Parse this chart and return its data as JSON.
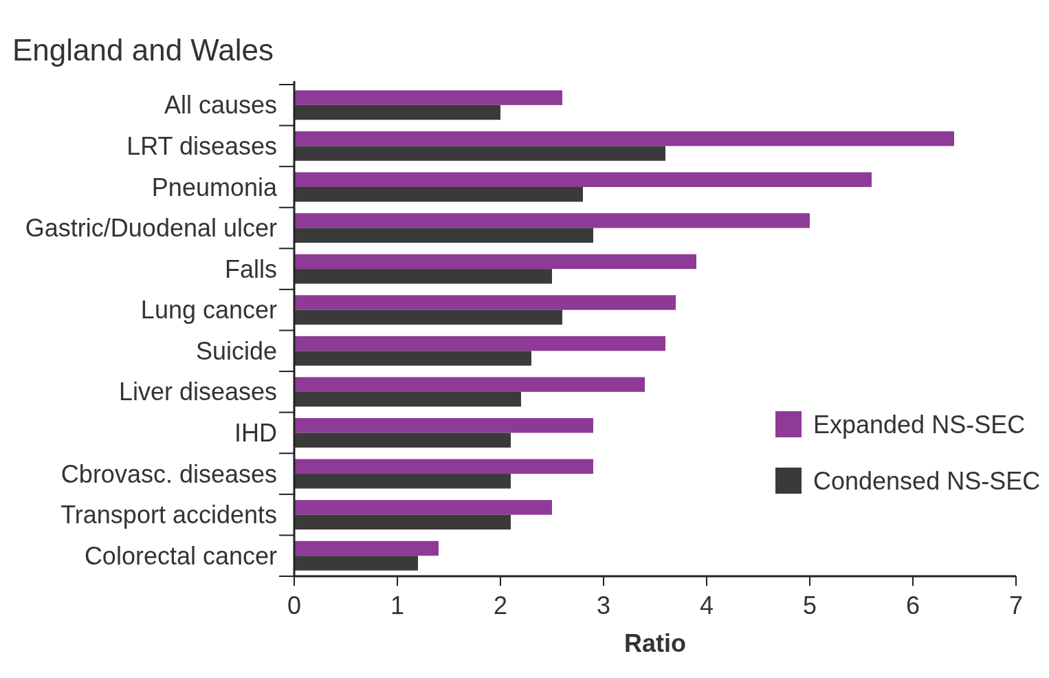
{
  "chart_data": {
    "type": "bar",
    "orientation": "horizontal",
    "title": "England and Wales",
    "xlabel": "Ratio",
    "categories": [
      "All causes",
      "LRT diseases",
      "Pneumonia",
      "Gastric/Duodenal ulcer",
      "Falls",
      "Lung cancer",
      "Suicide",
      "Liver diseases",
      "IHD",
      "Cbrovasc. diseases",
      "Transport accidents",
      "Colorectal cancer"
    ],
    "series": [
      {
        "name": "Expanded NS-SEC",
        "color": "#8e3a96",
        "values": [
          2.6,
          6.4,
          5.6,
          5.0,
          3.9,
          3.7,
          3.6,
          3.4,
          2.9,
          2.9,
          2.5,
          1.4
        ]
      },
      {
        "name": "Condensed NS-SEC",
        "color": "#3a3a3a",
        "values": [
          2.0,
          3.6,
          2.8,
          2.9,
          2.5,
          2.6,
          2.3,
          2.2,
          2.1,
          2.1,
          2.1,
          1.2
        ]
      }
    ],
    "xlim": [
      0,
      7
    ],
    "xticks": [
      0,
      1,
      2,
      3,
      4,
      5,
      6,
      7
    ],
    "grid": false,
    "legend": "right"
  }
}
